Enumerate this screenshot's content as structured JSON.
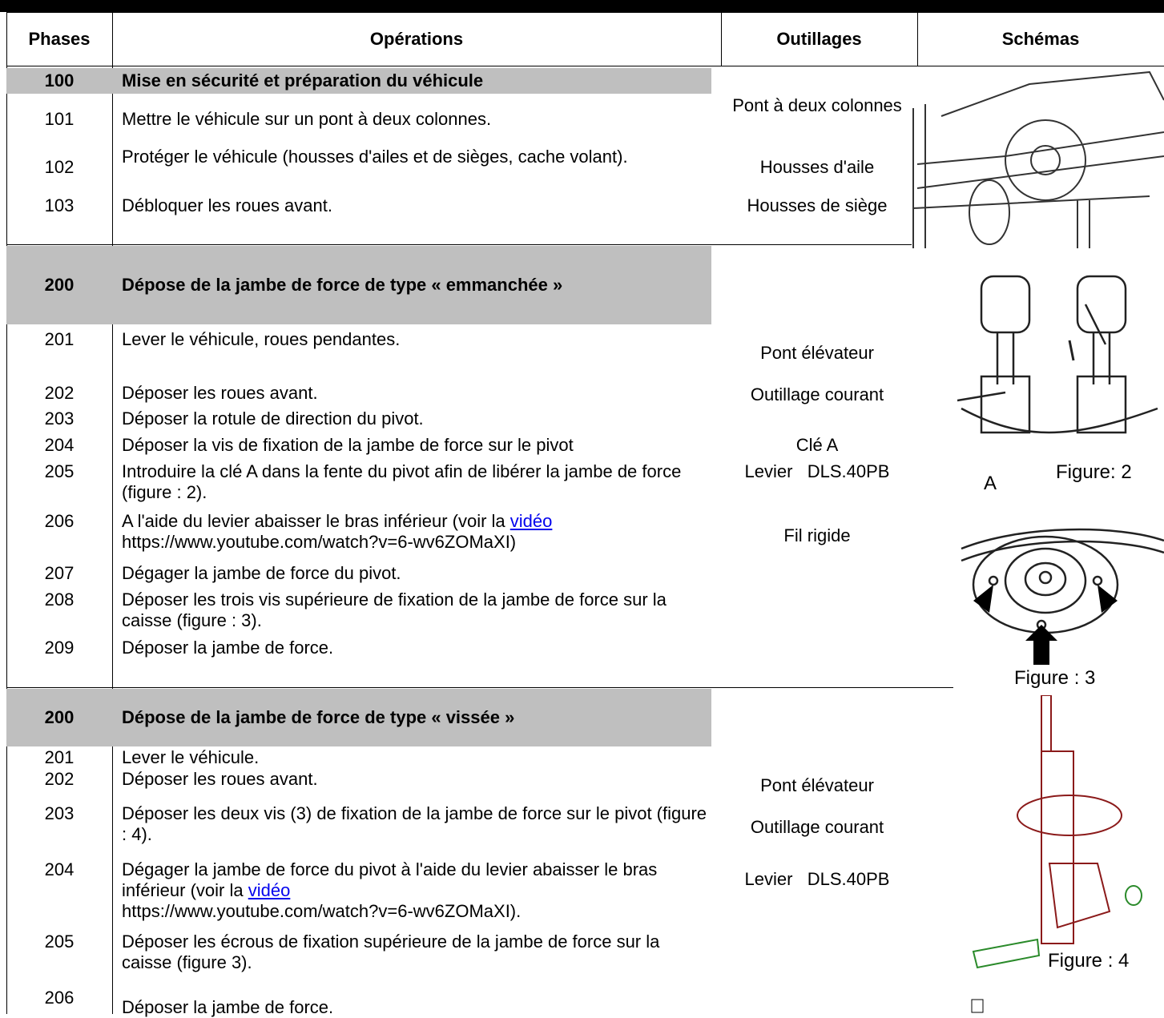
{
  "table": {
    "headers": [
      "Phases",
      "Opérations",
      "Outillages",
      "Schémas"
    ],
    "sections": [
      {
        "phase": "100",
        "title": "Mise en sécurité et préparation du véhicule",
        "rows": [
          {
            "phase": "101",
            "operation": "Mettre le véhicule sur un pont à deux colonnes."
          },
          {
            "phase": "102",
            "operation": "Protéger le véhicule (housses d'ailes et de sièges, cache volant)."
          },
          {
            "phase": "103",
            "operation": "Débloquer les roues avant."
          }
        ],
        "tools": [
          "Pont à deux colonnes",
          "Housses d'aile",
          "Housses de siège"
        ],
        "figures": []
      },
      {
        "phase": "200",
        "title": "Dépose de la jambe de force de type « emmanchée »",
        "rows": [
          {
            "phase": "201",
            "operation": "Lever le véhicule, roues pendantes."
          },
          {
            "phase": "202",
            "operation": "Déposer les roues avant."
          },
          {
            "phase": "203",
            "operation": "Déposer la rotule de direction du pivot."
          },
          {
            "phase": "204",
            "operation": "Déposer la vis de fixation de la jambe de force sur le pivot"
          },
          {
            "phase": "205",
            "operation": "Introduire la clé A dans la fente du pivot afin de libérer la jambe de force (figure : 2)."
          },
          {
            "phase": "206",
            "operation": "A l'aide du levier abaisser le bras inférieur (voir la",
            "link": "vidéo",
            "operation_end": "https://www.youtube.com/watch?v=6-wv6ZOMaXI)"
          },
          {
            "phase": "207",
            "operation": "Dégager la jambe de force du pivot."
          },
          {
            "phase": "208",
            "operation": "Déposer les trois vis supérieure de fixation de la jambe de force sur la caisse (figure : 3)."
          },
          {
            "phase": "209",
            "operation": "Déposer la jambe de force."
          }
        ],
        "tools": [
          "Pont élévateur",
          "Outillage courant",
          "Clé A",
          "Levier   DLS.40PB",
          "Fil rigide"
        ],
        "figures": [
          "A",
          "Figure: 2",
          "Figure : 3"
        ]
      },
      {
        "phase": "200",
        "title": "Dépose de la jambe de force de type « vissée »",
        "rows": [
          {
            "phase": "201",
            "operation": "Lever le véhicule."
          },
          {
            "phase": "202",
            "operation": "Déposer les roues avant."
          },
          {
            "phase": "203",
            "operation": "Déposer les deux vis (3) de fixation de la jambe de force sur le pivot (figure : 4)."
          },
          {
            "phase": "204",
            "operation": "Dégager la jambe de force du pivot à l'aide du levier abaisser le bras inférieur (voir la",
            "link": "vidéo",
            "operation_end": "https://www.youtube.com/watch?v=6-wv6ZOMaXI)."
          },
          {
            "phase": "205",
            "operation": "Déposer les écrous de fixation supérieure de la jambe de force sur la caisse (figure 3)."
          },
          {
            "phase": "206",
            "operation": "Déposer la jambe de force."
          }
        ],
        "tools": [
          "Pont élévateur",
          "Outillage courant",
          "Levier   DLS.40PB"
        ],
        "figures": [
          "Figure : 4"
        ]
      }
    ]
  }
}
